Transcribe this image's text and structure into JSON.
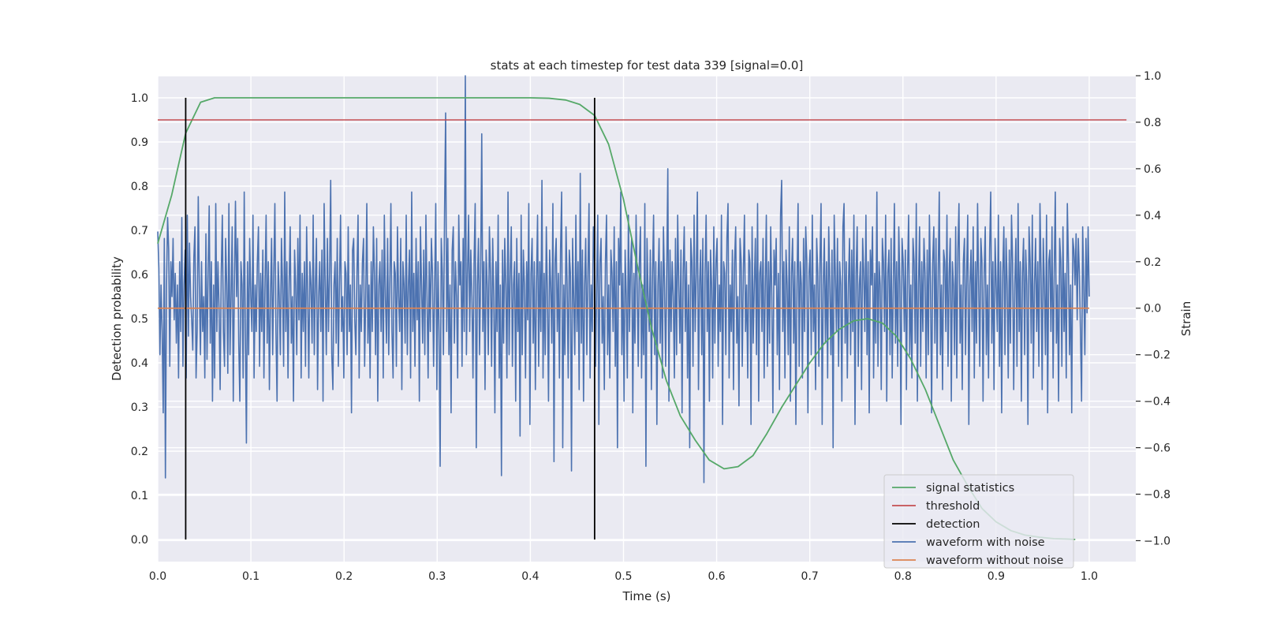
{
  "chart_data": {
    "type": "line",
    "title": "stats at each timestep for test data 339 [signal=0.0]",
    "xlabel": "Time (s)",
    "ylabel_left": "Detection probability",
    "ylabel_right": "Strain",
    "xlim": [
      0.0,
      1.05
    ],
    "ylim_left": [
      -0.05,
      1.05
    ],
    "ylim_right": [
      -1.09,
      1.0
    ],
    "xticks": [
      0.0,
      0.1,
      0.2,
      0.3,
      0.4,
      0.5,
      0.6,
      0.7,
      0.8,
      0.9,
      1.0
    ],
    "xtick_labels": [
      "0.0",
      "0.1",
      "0.2",
      "0.3",
      "0.4",
      "0.5",
      "0.6",
      "0.7",
      "0.8",
      "0.9",
      "1.0"
    ],
    "yticks_left": [
      0.0,
      0.1,
      0.2,
      0.3,
      0.4,
      0.5,
      0.6,
      0.7,
      0.8,
      0.9,
      1.0
    ],
    "ytick_labels_left": [
      "0.0",
      "0.1",
      "0.2",
      "0.3",
      "0.4",
      "0.5",
      "0.6",
      "0.7",
      "0.8",
      "0.9",
      "1.0"
    ],
    "yticks_right": [
      -1.0,
      -0.8,
      -0.6,
      -0.4,
      -0.2,
      0.0,
      0.2,
      0.4,
      0.6,
      0.8,
      1.0
    ],
    "ytick_labels_right": [
      "−1.0",
      "−0.8",
      "−0.6",
      "−0.4",
      "−0.2",
      "0.0",
      "0.2",
      "0.4",
      "0.6",
      "0.8",
      "1.0"
    ],
    "grid": true,
    "legend_position": "lower-right",
    "colors": {
      "signal_statistics": "#55a868",
      "threshold": "#c44e52",
      "detection": "#000000",
      "waveform_with_noise": "#4c72b0",
      "waveform_without_noise": "#dd8452",
      "plot_background": "#eaeaf2",
      "grid": "#ffffff"
    },
    "series": [
      {
        "name": "signal statistics",
        "axis": "left",
        "x": [
          0.0,
          0.015,
          0.03,
          0.046,
          0.061,
          0.077,
          0.1,
          0.2,
          0.3,
          0.4,
          0.42,
          0.438,
          0.453,
          0.469,
          0.484,
          0.5,
          0.515,
          0.53,
          0.546,
          0.561,
          0.577,
          0.592,
          0.608,
          0.623,
          0.639,
          0.654,
          0.67,
          0.685,
          0.7,
          0.716,
          0.731,
          0.747,
          0.762,
          0.778,
          0.793,
          0.808,
          0.824,
          0.839,
          0.854,
          0.87,
          0.885,
          0.9,
          0.916,
          0.931,
          0.947,
          0.962,
          0.977,
          0.985
        ],
        "values": [
          0.67,
          0.78,
          0.92,
          0.99,
          1.0,
          1.0,
          1.0,
          1.0,
          1.0,
          1.0,
          0.999,
          0.995,
          0.985,
          0.96,
          0.895,
          0.77,
          0.62,
          0.48,
          0.36,
          0.28,
          0.225,
          0.18,
          0.16,
          0.165,
          0.19,
          0.24,
          0.3,
          0.35,
          0.4,
          0.445,
          0.475,
          0.495,
          0.5,
          0.49,
          0.46,
          0.41,
          0.34,
          0.26,
          0.18,
          0.12,
          0.07,
          0.04,
          0.02,
          0.01,
          0.005,
          0.002,
          0.001,
          0.0
        ]
      },
      {
        "name": "threshold",
        "axis": "left",
        "x": [
          0.0,
          1.04
        ],
        "values": [
          0.95,
          0.95
        ]
      },
      {
        "name": "detection",
        "axis": "left",
        "vlines": [
          0.03,
          0.469
        ],
        "ymin": 0.0,
        "ymax": 1.0
      },
      {
        "name": "waveform with noise",
        "axis": "right",
        "x_start": 0.0,
        "x_end": 1.0,
        "values": [
          0.33,
          0.17,
          -0.2,
          0.1,
          -0.1,
          -0.45,
          0.3,
          -0.73,
          0.1,
          0.39,
          0.25,
          -0.25,
          0.2,
          0.05,
          0.3,
          -0.05,
          0.15,
          -0.15,
          0.1,
          -0.3,
          0.2,
          -0.1,
          0.39,
          -0.25,
          0.1,
          0.25,
          -0.3,
          0.4,
          -0.12,
          0.28,
          0.05,
          -0.05,
          -0.18,
          0.22,
          0.35,
          -0.3,
          -0.1,
          0.48,
          0.1,
          -0.2,
          0.2,
          -0.1,
          0.05,
          -0.3,
          0.32,
          -0.22,
          0.15,
          0.44,
          -0.15,
          0.2,
          -0.4,
          0.1,
          -0.3,
          0.45,
          -0.1,
          0.2,
          0.0,
          -0.35,
          0.15,
          0.4,
          -0.1,
          -0.25,
          0.3,
          0.1,
          -0.28,
          0.45,
          -0.2,
          0.05,
          0.35,
          -0.4,
          0.1,
          0.46,
          0.05,
          0.3,
          -0.15,
          -0.4,
          0.2,
          0.1,
          -0.3,
          0.5,
          -0.1,
          -0.58,
          0.2,
          -0.2,
          0.3,
          0.05,
          -0.1,
          0.4,
          -0.3,
          0.1,
          -0.1,
          0.2,
          0.35,
          -0.25,
          0.15,
          -0.1,
          0.25,
          -0.3,
          0.1,
          0.4,
          -0.15,
          0.2,
          -0.35,
          0.05,
          0.3,
          -0.2,
          0.15,
          0.45,
          -0.1,
          -0.4,
          0.2,
          0.05,
          -0.2,
          0.3,
          0.1,
          -0.25,
          0.5,
          -0.1,
          0.2,
          -0.3,
          0.1,
          0.35,
          -0.15,
          0.05,
          -0.4,
          0.25,
          0.1,
          -0.2,
          0.3,
          -0.05,
          0.4,
          -0.3,
          0.15,
          -0.1,
          0.2,
          -0.25,
          0.35,
          0.05,
          -0.3,
          0.2,
          0.1,
          -0.15,
          0.4,
          -0.2,
          0.1,
          0.3,
          -0.35,
          0.05,
          0.2,
          -0.1,
          0.25,
          -0.4,
          0.45,
          0.1,
          -0.2,
          0.3,
          -0.1,
          0.15,
          0.55,
          -0.2,
          -0.35,
          0.1,
          0.2,
          -0.15,
          0.3,
          -0.25,
          0.1,
          0.4,
          -0.1,
          0.05,
          -0.3,
          0.2,
          0.15,
          -0.2,
          0.35,
          -0.1,
          0.1,
          -0.45,
          0.25,
          0.3,
          -0.05,
          -0.2,
          0.15,
          0.4,
          -0.3,
          0.1,
          -0.1,
          0.2,
          0.3,
          -0.25,
          0.05,
          0.45,
          -0.15,
          0.1,
          -0.3,
          0.2,
          -0.1,
          0.35,
          0.15,
          -0.2,
          0.3,
          -0.4,
          0.1,
          0.2,
          -0.1,
          0.25,
          -0.3,
          0.4,
          0.05,
          -0.15,
          0.3,
          -0.2,
          0.1,
          0.45,
          -0.1,
          -0.3,
          0.2,
          0.15,
          -0.25,
          0.35,
          0.05,
          -0.1,
          0.3,
          -0.35,
          0.2,
          0.1,
          -0.15,
          0.4,
          -0.2,
          0.1,
          0.25,
          -0.3,
          0.5,
          -0.1,
          0.15,
          -0.25,
          0.3,
          -0.05,
          0.2,
          -0.4,
          0.35,
          0.1,
          -0.15,
          0.25,
          -0.2,
          0.4,
          0.05,
          -0.3,
          0.2,
          -0.1,
          0.3,
          0.15,
          -0.25,
          0.1,
          0.45,
          -0.35,
          0.2,
          -0.1,
          -0.68,
          0.3,
          0.15,
          -0.2,
          0.4,
          0.84,
          -0.1,
          0.3,
          -0.2,
          0.1,
          -0.45,
          0.25,
          0.35,
          -0.15,
          0.2,
          0.05,
          -0.3,
          0.4,
          0.1,
          0.2,
          -0.25,
          0.3,
          -0.1,
          1.0,
          -0.2,
          0.15,
          0.4,
          -0.1,
          0.25,
          0.05,
          -0.3,
          0.2,
          0.45,
          -0.6,
          0.1,
          0.3,
          -0.2,
          0.15,
          0.75,
          -0.1,
          0.2,
          -0.35,
          0.25,
          0.1,
          -0.2,
          0.35,
          0.15,
          -0.25,
          0.3,
          0.05,
          -0.45,
          0.2,
          -0.1,
          0.4,
          -0.3,
          0.1,
          -0.72,
          0.25,
          -0.15,
          0.3,
          0.1,
          -0.3,
          0.5,
          -0.2,
          0.15,
          0.35,
          -0.25,
          0.1,
          0.2,
          -0.4,
          0.3,
          -0.1,
          0.15,
          -0.55,
          0.4,
          -0.2,
          0.25,
          0.1,
          -0.3,
          0.2,
          -0.05,
          0.45,
          -0.5,
          0.15,
          0.3,
          -0.15,
          0.2,
          -0.35,
          0.1,
          0.4,
          -0.25,
          0.2,
          -0.1,
          0.55,
          -0.3,
          0.15,
          -0.2,
          0.35,
          0.05,
          -0.4,
          0.25,
          0.1,
          -0.15,
          0.45,
          -0.66,
          0.2,
          0.3,
          -0.1,
          0.15,
          -0.3,
          0.25,
          0.5,
          -0.6,
          0.1,
          -0.2,
          0.35,
          0.1,
          -0.3,
          0.25,
          0.15,
          -0.7,
          0.3,
          0.05,
          -0.2,
          0.4,
          -0.1,
          0.2,
          -0.35,
          0.58,
          -0.15,
          0.25,
          -0.4,
          0.1,
          0.3,
          -0.2,
          0.15,
          0.45,
          -0.3,
          0.1,
          -0.1,
          0.35,
          0.2,
          -0.25,
          0.1,
          0.4,
          -0.5,
          0.2,
          0.3,
          -0.15,
          0.05,
          -0.35,
          0.2,
          0.4,
          -0.2,
          0.1,
          -0.3,
          0.25,
          0.15,
          -0.1,
          0.35,
          -0.25,
          0.2,
          -0.6,
          0.3,
          0.1,
          0.5,
          -0.2,
          0.15,
          -0.4,
          0.25,
          0.05,
          -0.3,
          0.4,
          -0.1,
          0.2,
          0.3,
          -0.45,
          0.15,
          -0.15,
          0.4,
          0.1,
          -0.25,
          0.2,
          0.35,
          -0.3,
          0.1,
          -0.2,
          0.45,
          -0.68,
          0.3,
          0.05,
          -0.1,
          0.25,
          -0.35,
          0.15,
          0.4,
          -0.2,
          0.2,
          -0.5,
          0.1,
          0.3,
          -0.15,
          0.2,
          -0.3,
          0.35,
          0.1,
          -0.25,
          0.15,
          0.6,
          -0.4,
          0.25,
          -0.1,
          0.2,
          0.05,
          -0.3,
          0.3,
          -0.2,
          0.4,
          0.1,
          -0.15,
          0.25,
          -0.45,
          0.15,
          0.35,
          -0.1,
          0.2,
          -0.3,
          0.1,
          -0.6,
          0.3,
          0.2,
          -0.25,
          0.4,
          -0.1,
          0.15,
          0.5,
          -0.35,
          0.1,
          0.25,
          -0.2,
          0.3,
          -0.75,
          0.15,
          0.4,
          -0.1,
          0.2,
          -0.4,
          0.25,
          0.1,
          -0.3,
          0.35,
          -0.15,
          0.2,
          0.3,
          -0.25,
          0.1,
          -0.1,
          0.4,
          -0.5,
          0.2,
          0.15,
          -0.2,
          0.3,
          0.45,
          -0.3,
          0.1,
          -0.1,
          0.25,
          -0.35,
          0.2,
          0.35,
          -0.15,
          0.05,
          -0.42,
          0.3,
          0.2,
          -0.25,
          0.15,
          0.4,
          -0.1,
          0.1,
          -0.3,
          0.25,
          0.2,
          -0.5,
          0.35,
          -0.15,
          0.1,
          0.3,
          -0.2,
          0.45,
          -0.4,
          0.15,
          0.2,
          -0.1,
          0.3,
          -0.3,
          0.1,
          0.4,
          -0.25,
          0.2,
          -0.15,
          0.35,
          0.05,
          -0.45,
          0.25,
          0.1,
          0.3,
          -0.2,
          0.15,
          -0.35,
          0.4,
          0.55,
          -0.1,
          0.2,
          -0.3,
          0.25,
          0.1,
          -0.2,
          0.35,
          -0.4,
          0.15,
          0.3,
          -0.15,
          0.2,
          -0.5,
          0.1,
          0.45,
          -0.25,
          0.2,
          0.1,
          -0.3,
          0.3,
          -0.1,
          0.35,
          0.2,
          -0.45,
          0.15,
          0.25,
          -0.2,
          0.4,
          -0.1,
          0.1,
          -0.35,
          0.3,
          0.15,
          -0.25,
          0.2,
          0.45,
          -0.5,
          0.1,
          0.3,
          -0.15,
          0.2,
          -0.3,
          0.35,
          0.1,
          -0.2,
          0.25,
          -0.6,
          0.4,
          0.15,
          -0.1,
          0.3,
          -0.25,
          0.2,
          0.1,
          -0.4,
          0.35,
          0.45,
          -0.15,
          0.2,
          -0.3,
          0.1,
          0.3,
          -0.2,
          0.25,
          -0.1,
          0.4,
          -0.5,
          0.15,
          0.35,
          -0.25,
          0.1,
          0.2,
          -0.35,
          0.3,
          0.15,
          -0.1,
          0.4,
          -0.2,
          0.2,
          -0.45,
          0.25,
          0.1,
          0.35,
          -0.3,
          0.15,
          -0.15,
          0.5,
          -0.25,
          0.2,
          0.1,
          -0.35,
          0.3,
          0.2,
          -0.1,
          0.4,
          -0.4,
          0.15,
          0.25,
          -0.2,
          0.3,
          -0.3,
          0.1,
          0.45,
          -0.15,
          0.2,
          -0.25,
          0.35,
          0.1,
          -0.5,
          0.3,
          0.2,
          -0.1,
          0.25,
          -0.35,
          0.15,
          0.4,
          -0.2,
          0.1,
          -0.3,
          0.3,
          0.2,
          -0.15,
          0.45,
          -0.4,
          0.1,
          0.35,
          -0.25,
          0.2,
          -0.1,
          0.3,
          0.15,
          -0.3,
          0.25,
          -0.2,
          0.4,
          0.1,
          -0.45,
          0.2,
          0.35,
          -0.15,
          0.3,
          -0.3,
          0.15,
          0.5,
          -0.2,
          0.1,
          -0.35,
          0.25,
          0.2,
          -0.1,
          0.4,
          -0.25,
          0.15,
          0.3,
          -0.4,
          0.2,
          0.1,
          -0.2,
          0.35,
          -0.3,
          0.25,
          0.45,
          -0.15,
          0.1,
          -0.35,
          0.2,
          0.3,
          -0.2,
          0.15,
          0.4,
          -0.5,
          0.1,
          0.25,
          -0.1,
          0.35,
          -0.3,
          0.2,
          -0.15,
          0.45,
          0.1,
          -0.25,
          0.3,
          0.2,
          -0.4,
          0.15,
          0.35,
          -0.2,
          0.1,
          -0.3,
          0.25,
          0.5,
          -0.15,
          0.2,
          -0.35,
          0.3,
          0.1,
          -0.1,
          0.4,
          -0.25,
          0.2,
          -0.45,
          0.15,
          0.35,
          -0.2,
          0.3,
          0.1,
          -0.3,
          0.25,
          -0.15,
          0.4,
          0.2,
          -0.35,
          0.1,
          0.3,
          -0.25,
          0.45,
          -0.1,
          0.2,
          -0.4,
          0.15,
          0.3,
          -0.2,
          0.25,
          0.1,
          -0.5,
          0.35,
          0.2,
          -0.15,
          0.4,
          -0.3,
          0.1,
          0.3,
          -0.1,
          0.2,
          -0.25,
          0.45,
          0.15,
          -0.35,
          0.3,
          0.1,
          -0.2,
          0.4,
          -0.45,
          0.2,
          0.25,
          -0.1,
          0.35,
          -0.3,
          0.15,
          0.5,
          -0.15,
          0.1,
          -0.4,
          0.3,
          0.2,
          -0.25,
          0.35,
          -0.1,
          0.15,
          -0.3,
          0.45,
          0.2,
          -0.2,
          0.1,
          -0.45,
          0.3,
          0.25,
          0.1,
          0.32,
          -0.05,
          0.3,
          0.15,
          -0.1,
          -0.4,
          0.35,
          0.1,
          -0.2,
          0.3,
          -0.02,
          0.35,
          0.05
        ]
      },
      {
        "name": "waveform without noise",
        "axis": "right",
        "x": [
          0.0,
          1.0
        ],
        "values": [
          0.0,
          0.0
        ]
      }
    ],
    "legend": [
      "signal statistics",
      "threshold",
      "detection",
      "waveform with noise",
      "waveform without noise"
    ]
  }
}
